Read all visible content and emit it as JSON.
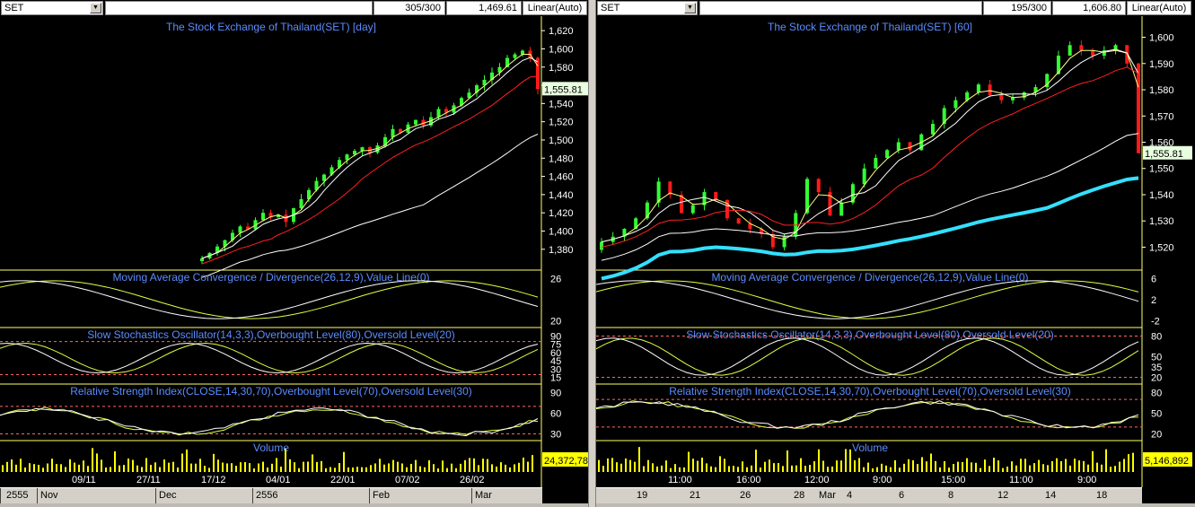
{
  "left": {
    "symbol": "SET",
    "count": "305/300",
    "last_value": "1,469.61",
    "scale_mode": "Linear(Auto)",
    "current_price_label": "1,555.81",
    "volume_label": "24,372,78",
    "date_ticks": [
      "09/11",
      "27/11",
      "17/12",
      "04/01",
      "22/01",
      "07/02",
      "26/02"
    ],
    "bottom_labels": [
      "2555",
      "Nov",
      "Dec",
      "2556",
      "Feb",
      "Mar"
    ]
  },
  "right": {
    "symbol": "SET",
    "count": "195/300",
    "last_value": "1,606.80",
    "scale_mode": "Linear(Auto)",
    "current_price_label": "1,555.81",
    "volume_label": "5,146,892",
    "time_ticks": [
      "11:00",
      "16:00",
      "12:00",
      "9:00",
      "15:00",
      "11:00",
      "9:00"
    ],
    "bottom_labels": [
      "19",
      "21",
      "26",
      "28",
      "Mar",
      "4",
      "6",
      "8",
      "12",
      "14",
      "18"
    ]
  },
  "chart_data": [
    {
      "type": "candlestick",
      "title": "The Stock Exchange of Thailand(SET) [day]",
      "y_ticks": [
        1380,
        1400,
        1420,
        1440,
        1460,
        1480,
        1500,
        1520,
        1540,
        1560,
        1580,
        1600,
        1620
      ],
      "ylim": [
        1365,
        1630
      ],
      "close_series": [
        1370,
        1376,
        1383,
        1390,
        1398,
        1405,
        1402,
        1412,
        1420,
        1415,
        1418,
        1410,
        1425,
        1435,
        1445,
        1455,
        1462,
        1470,
        1478,
        1484,
        1488,
        1492,
        1486,
        1494,
        1503,
        1512,
        1508,
        1517,
        1522,
        1516,
        1525,
        1534,
        1530,
        1538,
        1546,
        1552,
        1560,
        1566,
        1574,
        1580,
        1590,
        1594,
        1598,
        1590,
        1555.81
      ],
      "indicators": [
        {
          "title": "Moving Average Convergence / Divergence(26,12,9),Value Line(0)",
          "y_ticks": [
            26,
            20
          ]
        },
        {
          "title": "Slow Stochastics Oscillator(14,3,3),Overbought Level(80),Oversold Level(20)",
          "y_ticks": [
            90,
            75,
            60,
            45,
            30,
            15
          ]
        },
        {
          "title": "Relative Strength Index(CLOSE,14,30,70),Overbought Level(70),Oversold Level(30)",
          "y_ticks": [
            90,
            60,
            30
          ]
        },
        {
          "title": "Volume",
          "y_ticks": []
        }
      ]
    },
    {
      "type": "candlestick",
      "title": "The Stock Exchange of Thailand(SET) [60]",
      "y_ticks": [
        1520,
        1530,
        1540,
        1550,
        1560,
        1570,
        1580,
        1590,
        1600
      ],
      "ylim": [
        1514,
        1606
      ],
      "close_series": [
        1522,
        1524,
        1527,
        1531,
        1537,
        1545,
        1540,
        1533,
        1536,
        1541,
        1538,
        1531,
        1529,
        1527,
        1525,
        1520,
        1524,
        1533,
        1546,
        1541,
        1532,
        1537,
        1544,
        1550,
        1554,
        1557,
        1560,
        1557,
        1563,
        1567,
        1573,
        1576,
        1579,
        1582,
        1578,
        1576,
        1577,
        1579,
        1581,
        1586,
        1593,
        1597,
        1595,
        1593,
        1595,
        1597,
        1590,
        1555.81
      ],
      "indicators": [
        {
          "title": "Moving Average Convergence / Divergence(26,12,9),Value Line(0)",
          "y_ticks": [
            6,
            2,
            -2
          ]
        },
        {
          "title": "Slow Stochastics Oscillator(14,3,3),Overbought Level(80),Oversold Level(20)",
          "y_ticks": [
            80,
            50,
            35,
            20
          ]
        },
        {
          "title": "Relative Strength Index(CLOSE,14,30,70),Overbought Level(70),Oversold Level(30)",
          "y_ticks": [
            80,
            50,
            20
          ]
        },
        {
          "title": "Volume",
          "y_ticks": []
        }
      ]
    }
  ],
  "colors": {
    "up": "#33ff33",
    "down": "#ff1a1a",
    "title_text": "#5b8cff",
    "axis_text": "#ffffff",
    "separator": "#ffff66",
    "indicator_line": "#e0ff40",
    "ma_slow": "#ffffff",
    "ma_mid": "#ff2020",
    "ma_fast": "#ffff80",
    "ma_long": "#33e0ff",
    "price_label_bg": "#e8ffe0",
    "volume_label_bg": "#ffff00",
    "level_line": "#ff6666"
  }
}
